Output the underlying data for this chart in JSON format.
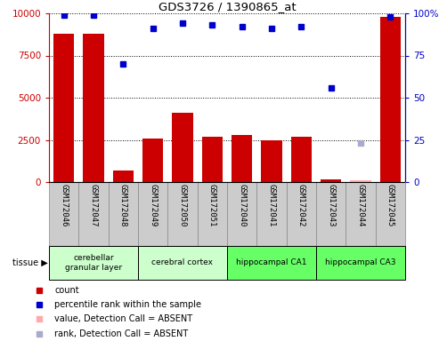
{
  "title": "GDS3726 / 1390865_at",
  "samples": [
    "GSM172046",
    "GSM172047",
    "GSM172048",
    "GSM172049",
    "GSM172050",
    "GSM172051",
    "GSM172040",
    "GSM172041",
    "GSM172042",
    "GSM172043",
    "GSM172044",
    "GSM172045"
  ],
  "counts": [
    8800,
    8800,
    700,
    2600,
    4100,
    2700,
    2800,
    2500,
    2700,
    150,
    100,
    9800
  ],
  "ranks": [
    99,
    99,
    70,
    91,
    94,
    93,
    92,
    91,
    92,
    56,
    null,
    98
  ],
  "absent_flags": [
    false,
    false,
    false,
    false,
    false,
    false,
    false,
    false,
    false,
    false,
    true,
    false
  ],
  "absent_rank": [
    null,
    null,
    null,
    null,
    null,
    null,
    null,
    null,
    null,
    null,
    23,
    null
  ],
  "tissues": [
    {
      "label": "cerebellar\ngranular layer",
      "start": 0,
      "end": 3,
      "color": "#ccffcc"
    },
    {
      "label": "cerebral cortex",
      "start": 3,
      "end": 6,
      "color": "#ccffcc"
    },
    {
      "label": "hippocampal CA1",
      "start": 6,
      "end": 9,
      "color": "#66ff66"
    },
    {
      "label": "hippocampal CA3",
      "start": 9,
      "end": 12,
      "color": "#66ff66"
    }
  ],
  "ylim_left": [
    0,
    10000
  ],
  "ylim_right": [
    0,
    100
  ],
  "yticks_left": [
    0,
    2500,
    5000,
    7500,
    10000
  ],
  "yticks_right": [
    0,
    25,
    50,
    75,
    100
  ],
  "bar_color": "#cc0000",
  "dot_color": "#0000cc",
  "absent_bar_color": "#ffaaaa",
  "absent_dot_color": "#aaaacc",
  "left_tick_color": "#cc0000",
  "right_tick_color": "#0000cc",
  "legend_items": [
    {
      "label": "count",
      "color": "#cc0000"
    },
    {
      "label": "percentile rank within the sample",
      "color": "#0000cc"
    },
    {
      "label": "value, Detection Call = ABSENT",
      "color": "#ffaaaa"
    },
    {
      "label": "rank, Detection Call = ABSENT",
      "color": "#aaaacc"
    }
  ],
  "sample_col_color": "#cccccc",
  "sample_col_border": "#888888"
}
